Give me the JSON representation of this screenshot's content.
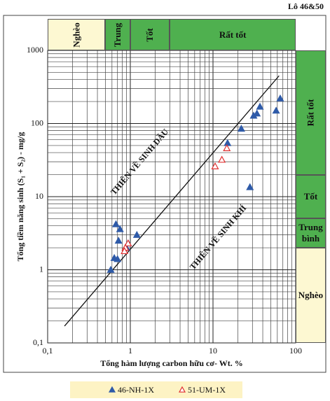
{
  "chart_data": {
    "type": "scatter",
    "title": "Lô 46&50",
    "x_label": "Tổng hàm lượng carbon hữu cơ- Wt. %",
    "y_label": "Tổng tiềm năng sinh (S₁ + S₂) - mg/g",
    "log_x": true,
    "log_y": true,
    "grid": true,
    "minor_grid": true,
    "xlim": [
      0.1,
      100
    ],
    "ylim": [
      0.1,
      1000
    ],
    "xticks": [
      {
        "value": 0.1,
        "label": "0,1"
      },
      1,
      10,
      100
    ],
    "yticks": [
      {
        "value": 0.1,
        "label": "0,1"
      },
      1,
      10,
      100,
      1000
    ],
    "x_bands": [
      {
        "label": "Nghèo",
        "range": [
          0.1,
          0.5
        ],
        "color": "#fdf8d2",
        "vertical": true
      },
      {
        "label": "Trung",
        "range": [
          0.5,
          1
        ],
        "color": "#4fb04f",
        "vertical": true
      },
      {
        "label": "Tốt",
        "range": [
          1,
          3
        ],
        "color": "#4fb04f",
        "vertical": true
      },
      {
        "label": "Rất tốt",
        "range": [
          3,
          100
        ],
        "color": "#4fb04f",
        "vertical": false
      }
    ],
    "y_bands": [
      {
        "label": "Nghèo",
        "range": [
          0.1,
          2
        ],
        "color": "#fdf8d2",
        "vertical": false
      },
      {
        "label": "Trung bình",
        "range": [
          2,
          5
        ],
        "color": "#4fb04f",
        "vertical": false
      },
      {
        "label": "Tốt",
        "range": [
          5,
          20
        ],
        "color": "#4fb04f",
        "vertical": false
      },
      {
        "label": "Rất tốt",
        "range": [
          20,
          1000
        ],
        "color": "#4fb04f",
        "vertical": true
      }
    ],
    "reference_line": {
      "x": [
        0.16,
        63
      ],
      "y": [
        0.17,
        450
      ],
      "color": "#111111"
    },
    "annotations": [
      "THIÊN VỀ SINH DẦU",
      "THIÊN VỀ SINH KHÍ"
    ],
    "series": [
      {
        "name": "46-NH-1X",
        "color": "#2e5aa8",
        "filled": true,
        "x": [
          65,
          58,
          37,
          34,
          31,
          22,
          15,
          28,
          1.2,
          0.67,
          0.75,
          0.72,
          0.94,
          0.9,
          0.64,
          0.7,
          0.58
        ],
        "values": [
          220,
          150,
          170,
          137,
          128,
          85,
          54,
          13.5,
          3.0,
          4.2,
          3.6,
          2.5,
          2.3,
          2.0,
          1.45,
          1.4,
          1.0
        ]
      },
      {
        "name": "51-UM-1X",
        "color": "#e03030",
        "filled": false,
        "x": [
          14.7,
          12.8,
          10.6,
          0.94,
          0.87,
          0.85
        ],
        "values": [
          46,
          32,
          26,
          2.3,
          2.0,
          1.8
        ]
      }
    ],
    "legend_color": "#fdf3c4"
  }
}
